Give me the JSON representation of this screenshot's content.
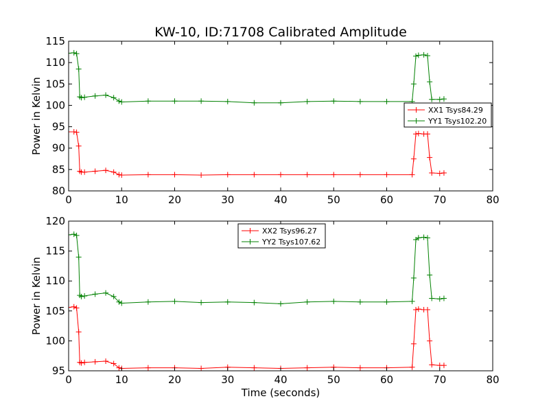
{
  "chart_data": [
    {
      "type": "line",
      "title": "KW-10, ID:71708 Calibrated Amplitude",
      "xlabel": "",
      "ylabel": "Power in Kelvin",
      "xlim": [
        0,
        80
      ],
      "ylim": [
        80,
        115
      ],
      "xticks": [
        "0",
        "10",
        "20",
        "30",
        "40",
        "50",
        "60",
        "70",
        "80"
      ],
      "yticks": [
        "80",
        "85",
        "90",
        "95",
        "100",
        "105",
        "110",
        "115"
      ],
      "grid": false,
      "legend_position": "right",
      "series": [
        {
          "name": "XX1 Tsys84.29",
          "color": "#ff0000",
          "x": [
            0,
            1,
            1.5,
            1.9,
            2.1,
            2.4,
            3,
            5,
            7,
            8.5,
            9.5,
            10,
            15,
            20,
            25,
            30,
            35,
            40,
            45,
            50,
            55,
            60,
            64.8,
            65.1,
            65.5,
            66,
            67,
            67.7,
            68.1,
            68.5,
            70,
            70.8
          ],
          "y": [
            93.8,
            93.8,
            93.7,
            90.5,
            84.6,
            84.4,
            84.4,
            84.6,
            84.8,
            84.4,
            83.8,
            83.7,
            83.8,
            83.8,
            83.7,
            83.8,
            83.8,
            83.8,
            83.8,
            83.8,
            83.8,
            83.8,
            83.8,
            87.5,
            93.3,
            93.4,
            93.3,
            93.3,
            87.8,
            84.2,
            84.1,
            84.2
          ]
        },
        {
          "name": "YY1 Tsys102.20",
          "color": "#008000",
          "x": [
            0,
            1,
            1.5,
            1.9,
            2.1,
            2.4,
            3,
            5,
            7,
            8.5,
            9.5,
            10,
            15,
            20,
            25,
            30,
            35,
            40,
            45,
            50,
            55,
            60,
            64.8,
            65.1,
            65.5,
            66,
            67,
            67.7,
            68.1,
            68.5,
            70,
            70.8
          ],
          "y": [
            112.2,
            112.3,
            112.1,
            108.5,
            102.0,
            101.8,
            101.9,
            102.2,
            102.4,
            101.8,
            101.0,
            100.8,
            101.0,
            101.0,
            101.0,
            100.9,
            100.6,
            100.6,
            100.9,
            101.0,
            100.9,
            100.9,
            100.9,
            105.0,
            111.5,
            111.7,
            111.8,
            111.6,
            105.5,
            101.4,
            101.4,
            101.5
          ]
        }
      ]
    },
    {
      "type": "line",
      "title": "",
      "xlabel": "Time (seconds)",
      "ylabel": "Power in Kelvin",
      "xlim": [
        0,
        80
      ],
      "ylim": [
        95,
        120
      ],
      "xticks": [
        "0",
        "10",
        "20",
        "30",
        "40",
        "50",
        "60",
        "70",
        "80"
      ],
      "yticks": [
        "95",
        "100",
        "105",
        "110",
        "115",
        "120"
      ],
      "grid": false,
      "legend_position": "top-center",
      "series": [
        {
          "name": "XX2 Tsys96.27",
          "color": "#ff0000",
          "x": [
            0,
            1,
            1.5,
            1.9,
            2.1,
            2.4,
            3,
            5,
            7,
            8.5,
            9.5,
            10,
            15,
            20,
            25,
            30,
            35,
            40,
            45,
            50,
            55,
            60,
            64.8,
            65.1,
            65.5,
            66,
            67,
            67.7,
            68.1,
            68.5,
            70,
            70.8
          ],
          "y": [
            105.6,
            105.7,
            105.5,
            101.5,
            96.4,
            96.3,
            96.4,
            96.5,
            96.6,
            96.2,
            95.5,
            95.4,
            95.5,
            95.5,
            95.4,
            95.6,
            95.5,
            95.4,
            95.5,
            95.6,
            95.5,
            95.5,
            95.6,
            99.5,
            105.2,
            105.3,
            105.2,
            105.2,
            100.0,
            96.0,
            95.9,
            95.9
          ]
        },
        {
          "name": "YY2 Tsys107.62",
          "color": "#008000",
          "x": [
            0,
            1,
            1.5,
            1.9,
            2.1,
            2.4,
            3,
            5,
            7,
            8.5,
            9.5,
            10,
            15,
            20,
            25,
            30,
            35,
            40,
            45,
            50,
            55,
            60,
            64.8,
            65.1,
            65.5,
            66,
            67,
            67.7,
            68.1,
            68.5,
            70,
            70.8
          ],
          "y": [
            117.7,
            117.8,
            117.6,
            114.0,
            107.6,
            107.4,
            107.5,
            107.8,
            108.0,
            107.4,
            106.5,
            106.3,
            106.5,
            106.6,
            106.4,
            106.5,
            106.4,
            106.2,
            106.5,
            106.6,
            106.5,
            106.5,
            106.6,
            110.5,
            116.9,
            117.2,
            117.3,
            117.2,
            111.0,
            107.1,
            107.0,
            107.1
          ]
        }
      ]
    }
  ]
}
